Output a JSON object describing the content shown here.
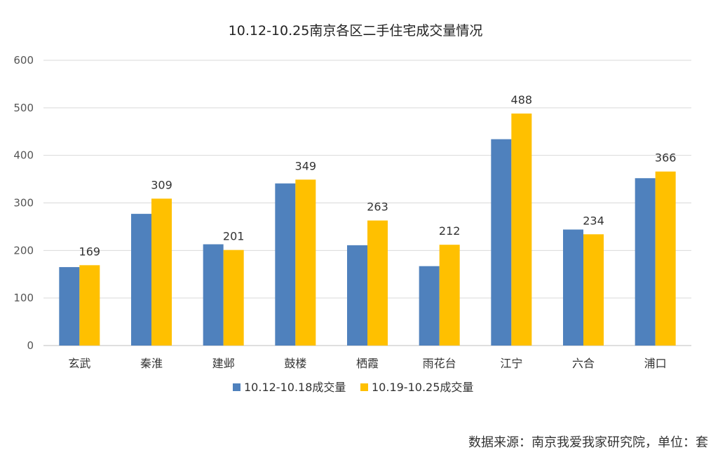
{
  "chart_data": {
    "type": "bar",
    "title": "10.12-10.25南京各区二手住宅成交量情况",
    "categories": [
      "玄武",
      "秦淮",
      "建邺",
      "鼓楼",
      "栖霞",
      "雨花台",
      "江宁",
      "六合",
      "浦口"
    ],
    "series": [
      {
        "name": "10.12-10.18成交量",
        "color": "#4f81bd",
        "values": [
          165,
          277,
          213,
          341,
          211,
          167,
          434,
          244,
          352
        ]
      },
      {
        "name": "10.19-10.25成交量",
        "color": "#ffc000",
        "values": [
          169,
          309,
          201,
          349,
          263,
          212,
          488,
          234,
          366
        ],
        "data_labels": true
      }
    ],
    "ylim": [
      0,
      600
    ],
    "yticks": [
      0,
      100,
      200,
      300,
      400,
      500,
      600
    ],
    "grid": true,
    "legend": "bottom"
  },
  "source_note": "数据来源：南京我爱我家研究院，单位：套"
}
